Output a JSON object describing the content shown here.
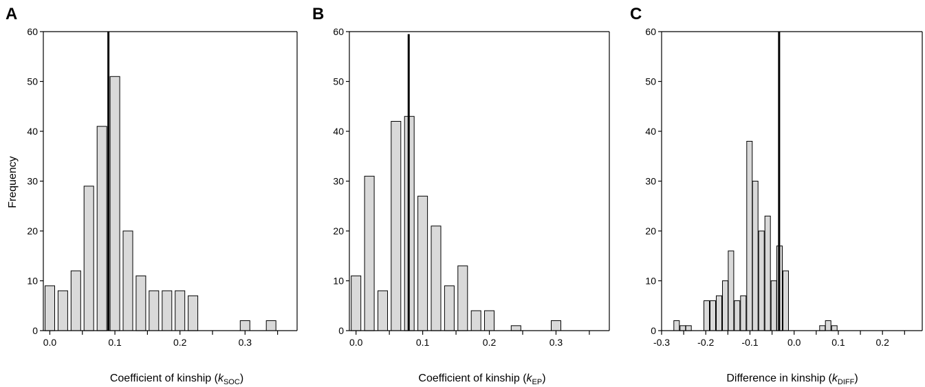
{
  "y_axis_title": "Frequency",
  "chart_data": [
    {
      "panel": "A",
      "type": "bar",
      "xlabel": {
        "prefix": "Coefficient of kinship (",
        "var": "k",
        "sub": "SOC",
        "suffix": ")"
      },
      "ylabel": "Frequency",
      "ylim": [
        0,
        60
      ],
      "yticks": [
        0,
        10,
        20,
        30,
        40,
        50,
        60
      ],
      "xlim": [
        -0.01,
        0.38
      ],
      "xticks": [
        0.0,
        0.1,
        0.2,
        0.3
      ],
      "xtick_labels": [
        "0.0",
        "0.1",
        "0.2",
        "0.3"
      ],
      "bin_width": 0.02,
      "bin_centers": [
        0.0,
        0.02,
        0.04,
        0.06,
        0.08,
        0.1,
        0.12,
        0.14,
        0.16,
        0.18,
        0.2,
        0.22,
        0.24,
        0.26,
        0.28,
        0.3,
        0.32,
        0.34,
        0.36
      ],
      "values": [
        9,
        8,
        12,
        29,
        41,
        51,
        20,
        11,
        8,
        8,
        8,
        7,
        0,
        0,
        0,
        2,
        0,
        2,
        0
      ],
      "reference_line_x": 0.09,
      "reference_line_top": 60
    },
    {
      "panel": "B",
      "type": "bar",
      "xlabel": {
        "prefix": "Coefficient of kinship (",
        "var": "k",
        "sub": "EP",
        "suffix": ")"
      },
      "ylabel": "",
      "ylim": [
        0,
        60
      ],
      "yticks": [
        0,
        10,
        20,
        30,
        40,
        50,
        60
      ],
      "xlim": [
        -0.01,
        0.38
      ],
      "xticks": [
        0.0,
        0.1,
        0.2,
        0.3
      ],
      "xtick_labels": [
        "0.0",
        "0.1",
        "0.2",
        "0.3"
      ],
      "bin_width": 0.02,
      "bin_centers": [
        0.0,
        0.02,
        0.04,
        0.06,
        0.08,
        0.1,
        0.12,
        0.14,
        0.16,
        0.18,
        0.2,
        0.22,
        0.24,
        0.26,
        0.28,
        0.3,
        0.32,
        0.34,
        0.36
      ],
      "values": [
        11,
        31,
        8,
        42,
        43,
        27,
        21,
        9,
        13,
        4,
        4,
        0,
        1,
        0,
        0,
        2,
        0,
        0,
        0
      ],
      "reference_line_x": 0.079,
      "reference_line_top": 59.5
    },
    {
      "panel": "C",
      "type": "bar",
      "xlabel": {
        "prefix": "Difference in kinship (",
        "var": "k",
        "sub": "DIFF",
        "suffix": ")"
      },
      "ylabel": "",
      "ylim": [
        0,
        60
      ],
      "yticks": [
        0,
        10,
        20,
        30,
        40,
        50,
        60
      ],
      "xlim": [
        -0.3,
        0.29
      ],
      "xticks": [
        -0.3,
        -0.2,
        -0.1,
        0.0,
        0.1,
        0.2
      ],
      "xtick_labels": [
        "-0.3",
        "-0.2",
        "-0.1",
        "0.0",
        "0.1",
        "0.2"
      ],
      "bin_width": 0.0137,
      "bin_centers": [
        -0.28,
        -0.266,
        -0.252,
        -0.239,
        -0.225,
        -0.211,
        -0.198,
        -0.184,
        -0.17,
        -0.156,
        -0.143,
        -0.129,
        -0.115,
        -0.101,
        -0.088,
        -0.074,
        -0.06,
        -0.046,
        -0.033,
        -0.019,
        -0.005,
        0.009,
        0.022,
        0.036,
        0.05,
        0.064,
        0.077,
        0.091,
        0.105,
        0.119,
        0.132,
        0.146,
        0.16,
        0.174,
        0.187,
        0.201,
        0.215,
        0.229,
        0.242,
        0.256,
        0.27
      ],
      "values": [
        0,
        2,
        1,
        1,
        0,
        0,
        6,
        6,
        7,
        10,
        16,
        6,
        7,
        38,
        30,
        20,
        23,
        10,
        17,
        12,
        0,
        0,
        0,
        0,
        0,
        1,
        2,
        1,
        0,
        0,
        0,
        0,
        0,
        0,
        0,
        0,
        0,
        0,
        0,
        0,
        0
      ],
      "reference_line_x": -0.034,
      "reference_line_top": 60
    }
  ]
}
